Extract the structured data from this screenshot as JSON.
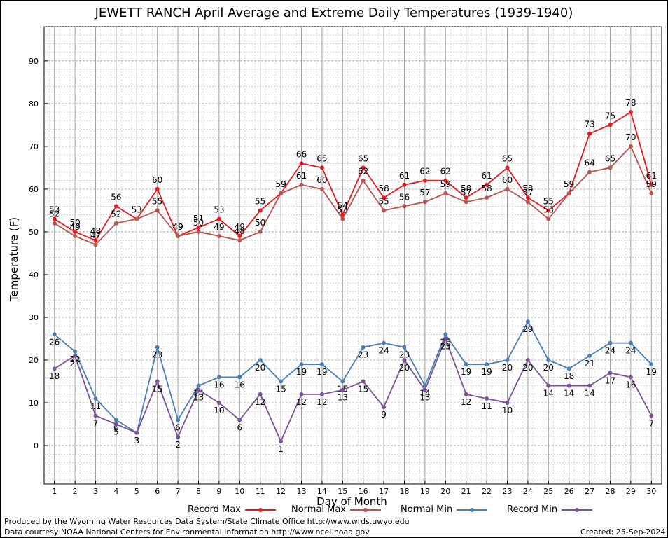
{
  "chart_data": {
    "type": "line",
    "title": "JEWETT RANCH April Average and Extreme Daily Temperatures (1939-1940)",
    "xlabel": "Day of Month",
    "ylabel": "Temperature (F)",
    "ylim": [
      -9,
      98
    ],
    "y_ticks": [
      0,
      10,
      20,
      30,
      40,
      50,
      60,
      70,
      80,
      90
    ],
    "x": [
      1,
      2,
      3,
      4,
      5,
      6,
      7,
      8,
      9,
      10,
      11,
      12,
      13,
      14,
      15,
      16,
      17,
      18,
      19,
      20,
      21,
      22,
      23,
      24,
      25,
      26,
      27,
      28,
      29,
      30
    ],
    "grid": true,
    "legend_position": "bottom",
    "series": [
      {
        "name": "Record Max",
        "color": "#e41a1c",
        "values": [
          53,
          50,
          48,
          56,
          53,
          60,
          49,
          51,
          53,
          49,
          55,
          59,
          66,
          65,
          54,
          65,
          58,
          61,
          62,
          62,
          58,
          61,
          65,
          58,
          55,
          59,
          73,
          75,
          78,
          61
        ]
      },
      {
        "name": "Normal Max",
        "color": "#b85450",
        "values": [
          52,
          49,
          47,
          52,
          53,
          55,
          49,
          50,
          49,
          48,
          50,
          59,
          61,
          60,
          53,
          62,
          55,
          56,
          57,
          59,
          57,
          58,
          60,
          57,
          53,
          59,
          64,
          65,
          70,
          59
        ]
      },
      {
        "name": "Normal Min",
        "color": "#4a7fb5",
        "values": [
          26,
          22,
          11,
          6,
          3,
          23,
          6,
          14,
          16,
          16,
          20,
          15,
          19,
          19,
          15,
          23,
          24,
          23,
          14,
          26,
          19,
          19,
          20,
          29,
          20,
          18,
          21,
          24,
          24,
          19
        ]
      },
      {
        "name": "Record Min",
        "color": "#7b5296",
        "values": [
          18,
          21,
          7,
          5,
          3,
          15,
          2,
          13,
          10,
          6,
          12,
          1,
          12,
          12,
          13,
          15,
          9,
          20,
          13,
          25,
          12,
          11,
          10,
          20,
          14,
          14,
          14,
          17,
          16,
          7
        ]
      }
    ]
  },
  "footer": {
    "produced_by": "Produced by the Wyoming Water Resources Data System/State Climate Office http://www.wrds.uwyo.edu",
    "courtesy": "Data courtesy NOAA National Centers for Environmental Information http://www.ncei.noaa.gov",
    "created": "Created:  25-Sep-2024"
  }
}
